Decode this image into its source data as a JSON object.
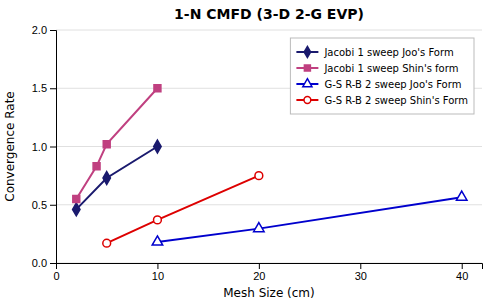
{
  "chart_data": {
    "type": "line",
    "title": "1-N CMFD (3-D 2-G EVP)",
    "x_label": "Mesh Size (cm)",
    "y_label": "Convergence Rate",
    "xlim": [
      0,
      42
    ],
    "ylim": [
      0,
      2
    ],
    "xticks": [
      0,
      10,
      20,
      30,
      40
    ],
    "yticks": [
      {
        "value": 0,
        "label": "0.0"
      },
      {
        "value": 0.5,
        "label": "0.5"
      },
      {
        "value": 1,
        "label": "1.0"
      },
      {
        "value": 1.5,
        "label": "1.5"
      },
      {
        "value": 2,
        "label": "2.0"
      }
    ],
    "grid": "y",
    "legend": "upper right",
    "series": [
      {
        "name": "Jacobi 1 sweep Joo's Form",
        "color": "#1a1a6e",
        "marker": "diamond",
        "x": [
          2,
          5,
          10
        ],
        "values": [
          0.46,
          0.73,
          1.0
        ]
      },
      {
        "name": "Jacobi 1 sweep Shin's form",
        "color": "#C04080",
        "marker": "square",
        "x": [
          2,
          4,
          5,
          10
        ],
        "values": [
          0.55,
          0.83,
          1.02,
          1.5
        ]
      },
      {
        "name": "G-S R-B 2 sweep Joo's Form",
        "color": "#0000CD",
        "marker": "triangle-open",
        "x": [
          10,
          20,
          40
        ],
        "values": [
          0.18,
          0.295,
          0.565
        ]
      },
      {
        "name": "G-S R-B 2 sweep Shin's Form",
        "color": "#DD0000",
        "marker": "circle-open",
        "x": [
          5,
          10,
          20
        ],
        "values": [
          0.17,
          0.37,
          0.75
        ]
      }
    ]
  }
}
